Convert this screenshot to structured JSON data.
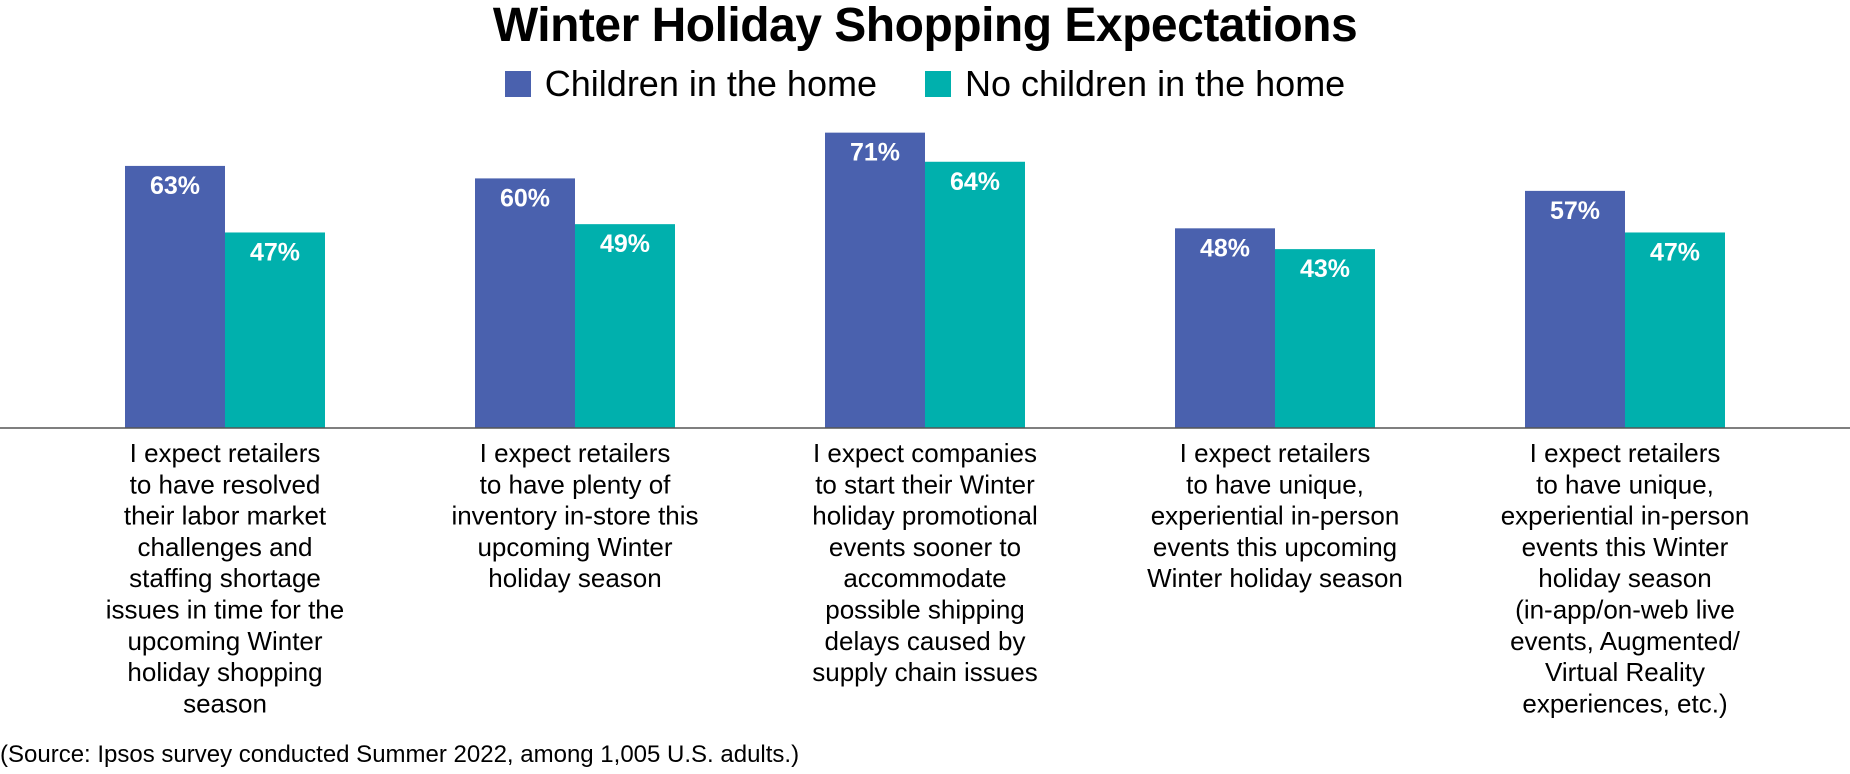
{
  "chart_data": {
    "type": "bar",
    "title": "Winter Holiday Shopping Expectations",
    "categories": [
      "I expect retailers to have resolved their labor market challenges and staffing shortage issues in time for the upcoming Winter holiday shopping season",
      "I expect retailers to have plenty of inventory in-store this upcoming Winter holiday season",
      "I expect companies to start their Winter holiday promotional events sooner to accommodate possible shipping delays caused by supply chain issues",
      "I expect retailers to have unique, experiential in-person events this upcoming Winter holiday season",
      "I expect retailers to have unique, experiential in-person events this Winter holiday season (in-app/on-web live events, Augmented/ Virtual Reality experiences, etc.)"
    ],
    "category_lines": [
      [
        "I expect retailers",
        "to have resolved",
        "their labor market",
        "challenges and",
        "staffing shortage",
        "issues in time for the",
        "upcoming Winter",
        "holiday shopping",
        "season"
      ],
      [
        "I expect retailers",
        "to have plenty of",
        "inventory in-store this",
        "upcoming Winter",
        "holiday season"
      ],
      [
        "I expect companies",
        "to start their Winter",
        "holiday promotional",
        "events sooner to",
        "accommodate",
        "possible shipping",
        "delays caused by",
        "supply chain issues"
      ],
      [
        "I expect retailers",
        "to have unique,",
        "experiential in-person",
        "events this upcoming",
        "Winter holiday season"
      ],
      [
        "I expect retailers",
        "to have unique,",
        "experiential in-person",
        "events this Winter",
        "holiday season",
        "(in-app/on-web live",
        "events, Augmented/",
        "Virtual Reality",
        "experiences, etc.)"
      ]
    ],
    "series": [
      {
        "name": "Children in the home",
        "color": "#4a61ae",
        "values": [
          63,
          60,
          71,
          48,
          57
        ],
        "labels": [
          "63%",
          "60%",
          "71%",
          "48%",
          "57%"
        ]
      },
      {
        "name": "No children in the home",
        "color": "#00b0ad",
        "values": [
          47,
          49,
          64,
          43,
          47
        ],
        "labels": [
          "47%",
          "49%",
          "64%",
          "43%",
          "47%"
        ]
      }
    ],
    "ylim": [
      0,
      100
    ],
    "grid": false,
    "legend_position": "top-center",
    "source": "(Source: Ipsos survey conducted Summer 2022, among 1,005 U.S. adults.)"
  }
}
